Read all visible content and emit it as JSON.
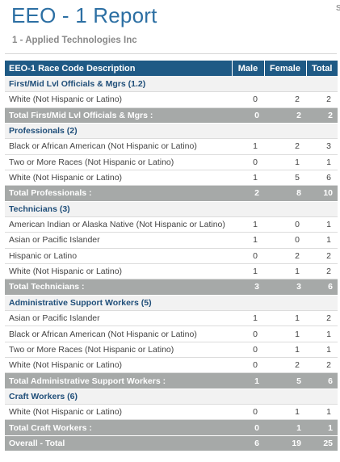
{
  "header": {
    "title": "EEO - 1 Report",
    "subtitle": "1 - Applied Technologies Inc",
    "corner": "S"
  },
  "table": {
    "columns": [
      "EEO-1 Race Code Description",
      "Male",
      "Female",
      "Total"
    ],
    "rows": [
      {
        "type": "group",
        "label": "First/Mid Lvl Officials & Mgrs (1.2)"
      },
      {
        "type": "detail",
        "label": "White (Not Hispanic or Latino)",
        "male": "0",
        "female": "2",
        "total": "2"
      },
      {
        "type": "total",
        "label": "Total First/Mid Lvl Officials & Mgrs :",
        "male": "0",
        "female": "2",
        "total": "2"
      },
      {
        "type": "group",
        "label": "Professionals (2)"
      },
      {
        "type": "detail",
        "label": "Black or African American (Not Hispanic or Latino)",
        "male": "1",
        "female": "2",
        "total": "3"
      },
      {
        "type": "detail",
        "label": "Two or More Races (Not Hispanic or Latino)",
        "male": "0",
        "female": "1",
        "total": "1"
      },
      {
        "type": "detail",
        "label": "White (Not Hispanic or Latino)",
        "male": "1",
        "female": "5",
        "total": "6"
      },
      {
        "type": "total",
        "label": "Total Professionals :",
        "male": "2",
        "female": "8",
        "total": "10"
      },
      {
        "type": "group",
        "label": "Technicians (3)"
      },
      {
        "type": "detail",
        "label": "American Indian or Alaska Native (Not Hispanic or Latino)",
        "male": "1",
        "female": "0",
        "total": "1"
      },
      {
        "type": "detail",
        "label": "Asian or Pacific Islander",
        "male": "1",
        "female": "0",
        "total": "1"
      },
      {
        "type": "detail",
        "label": "Hispanic or Latino",
        "male": "0",
        "female": "2",
        "total": "2"
      },
      {
        "type": "detail",
        "label": "White (Not Hispanic or Latino)",
        "male": "1",
        "female": "1",
        "total": "2"
      },
      {
        "type": "total",
        "label": "Total Technicians :",
        "male": "3",
        "female": "3",
        "total": "6"
      },
      {
        "type": "group",
        "label": "Administrative Support Workers (5)"
      },
      {
        "type": "detail",
        "label": "Asian or Pacific Islander",
        "male": "1",
        "female": "1",
        "total": "2"
      },
      {
        "type": "detail",
        "label": "Black or African American (Not Hispanic or Latino)",
        "male": "0",
        "female": "1",
        "total": "1"
      },
      {
        "type": "detail",
        "label": "Two or More Races (Not Hispanic or Latino)",
        "male": "0",
        "female": "1",
        "total": "1"
      },
      {
        "type": "detail",
        "label": "White (Not Hispanic or Latino)",
        "male": "0",
        "female": "2",
        "total": "2"
      },
      {
        "type": "total",
        "label": "Total Administrative Support Workers :",
        "male": "1",
        "female": "5",
        "total": "6"
      },
      {
        "type": "group",
        "label": "Craft Workers (6)"
      },
      {
        "type": "detail",
        "label": "White (Not Hispanic or Latino)",
        "male": "0",
        "female": "1",
        "total": "1"
      },
      {
        "type": "total",
        "label": "Total Craft Workers :",
        "male": "0",
        "female": "1",
        "total": "1"
      },
      {
        "type": "total",
        "label": "Overall - Total",
        "male": "6",
        "female": "19",
        "total": "25"
      }
    ]
  }
}
